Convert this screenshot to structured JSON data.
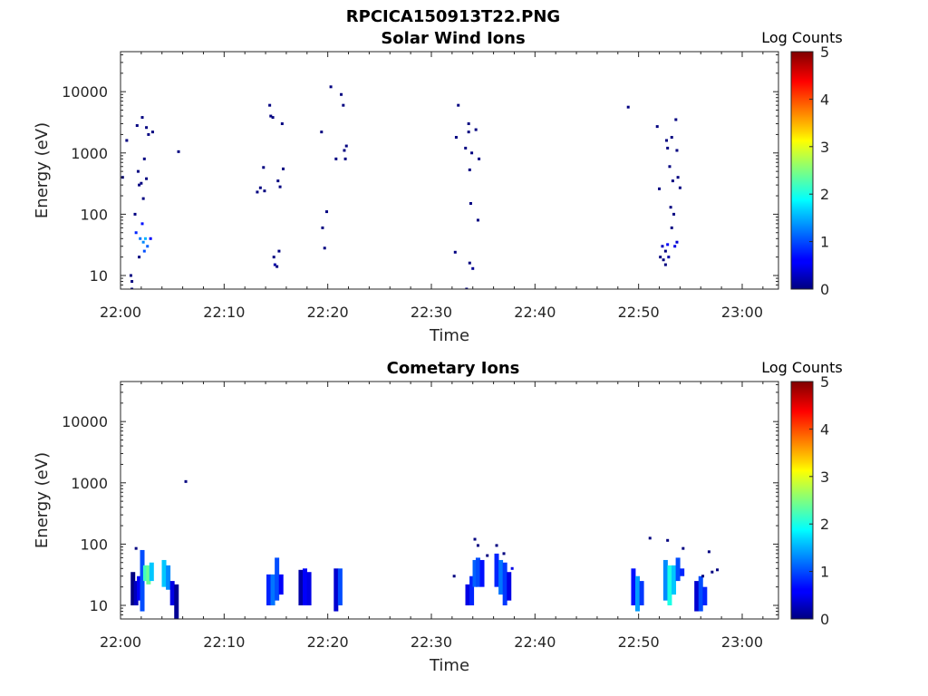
{
  "figure_title": "RPCICA150913T22.PNG",
  "chart_data": [
    {
      "type": "heatmap",
      "title": "Solar Wind Ions",
      "xlabel": "Time",
      "ylabel": "Energy (eV)",
      "x_ticks": [
        "22:00",
        "22:10",
        "22:20",
        "22:30",
        "22:40",
        "22:50",
        "23:00"
      ],
      "x_range_minutes": [
        0,
        63.5
      ],
      "y_scale": "log",
      "y_range": [
        6,
        45000
      ],
      "y_ticks": [
        "10",
        "100",
        "1000",
        "10000"
      ],
      "colorbar": {
        "label": "Log Counts",
        "range": [
          0,
          5
        ],
        "ticks": [
          "0",
          "1",
          "2",
          "3",
          "4",
          "5"
        ],
        "colormap": "jet"
      },
      "cells": [
        [
          -0.1,
          30,
          0
        ],
        [
          0.2,
          400,
          0
        ],
        [
          0.6,
          1600,
          0
        ],
        [
          1.0,
          10,
          0
        ],
        [
          1.1,
          8,
          0
        ],
        [
          1.1,
          6,
          0
        ],
        [
          1.4,
          100,
          0
        ],
        [
          1.5,
          50,
          0.8
        ],
        [
          1.6,
          2800,
          0
        ],
        [
          1.7,
          500,
          0
        ],
        [
          1.8,
          300,
          0
        ],
        [
          1.8,
          20,
          0
        ],
        [
          1.9,
          40,
          1.2
        ],
        [
          2.0,
          320,
          0
        ],
        [
          2.1,
          3800,
          0
        ],
        [
          2.1,
          70,
          0.7
        ],
        [
          2.2,
          35,
          1.3
        ],
        [
          2.2,
          180,
          0
        ],
        [
          2.3,
          800,
          0
        ],
        [
          2.3,
          25,
          1.0
        ],
        [
          2.4,
          40,
          1.5
        ],
        [
          2.5,
          2600,
          0
        ],
        [
          2.5,
          380,
          0
        ],
        [
          2.6,
          30,
          1.1
        ],
        [
          2.7,
          2000,
          0
        ],
        [
          2.9,
          40,
          0.6
        ],
        [
          3.1,
          2200,
          0
        ],
        [
          5.6,
          1050,
          0
        ],
        [
          13.2,
          230,
          0
        ],
        [
          13.5,
          270,
          0
        ],
        [
          13.8,
          580,
          0
        ],
        [
          13.9,
          240,
          0
        ],
        [
          14.4,
          6000,
          0
        ],
        [
          14.5,
          4000,
          0
        ],
        [
          14.7,
          3800,
          0
        ],
        [
          14.8,
          20,
          0
        ],
        [
          14.9,
          15,
          0.2
        ],
        [
          15.1,
          14,
          0
        ],
        [
          15.2,
          350,
          0
        ],
        [
          15.3,
          25,
          0
        ],
        [
          15.4,
          280,
          0
        ],
        [
          15.6,
          3000,
          0
        ],
        [
          15.7,
          550,
          0
        ],
        [
          19.4,
          2200,
          0
        ],
        [
          19.5,
          60,
          0
        ],
        [
          19.7,
          28,
          0
        ],
        [
          19.9,
          110,
          0
        ],
        [
          20.3,
          12000,
          0
        ],
        [
          20.8,
          800,
          0
        ],
        [
          21.3,
          9000,
          0
        ],
        [
          21.5,
          6000,
          0
        ],
        [
          21.6,
          1100,
          0
        ],
        [
          21.7,
          800,
          0
        ],
        [
          21.8,
          1300,
          0
        ],
        [
          32.3,
          24,
          0
        ],
        [
          32.4,
          1800,
          0
        ],
        [
          32.6,
          6000,
          0
        ],
        [
          33.3,
          1200,
          0
        ],
        [
          33.4,
          6,
          0
        ],
        [
          33.6,
          3000,
          0
        ],
        [
          33.6,
          2200,
          0
        ],
        [
          33.7,
          530,
          0
        ],
        [
          33.7,
          16,
          0
        ],
        [
          33.8,
          150,
          0
        ],
        [
          33.9,
          1000,
          0
        ],
        [
          34.0,
          13,
          0.1
        ],
        [
          34.3,
          2400,
          0
        ],
        [
          34.5,
          80,
          0
        ],
        [
          34.6,
          800,
          0
        ],
        [
          49.0,
          5600,
          0
        ],
        [
          51.8,
          2700,
          0
        ],
        [
          52.0,
          260,
          0
        ],
        [
          52.1,
          20,
          0
        ],
        [
          52.3,
          30,
          0.3
        ],
        [
          52.4,
          18,
          0
        ],
        [
          52.6,
          25,
          0
        ],
        [
          52.6,
          15,
          0
        ],
        [
          52.7,
          1600,
          0
        ],
        [
          52.8,
          1200,
          0
        ],
        [
          52.8,
          32,
          0.6
        ],
        [
          52.9,
          20,
          0.2
        ],
        [
          53.0,
          600,
          0
        ],
        [
          53.1,
          130,
          0
        ],
        [
          53.2,
          60,
          0
        ],
        [
          53.2,
          1800,
          0
        ],
        [
          53.3,
          350,
          0
        ],
        [
          53.4,
          100,
          0
        ],
        [
          53.5,
          30,
          0.5
        ],
        [
          53.6,
          3500,
          0
        ],
        [
          53.7,
          1100,
          0
        ],
        [
          53.7,
          35,
          0.4
        ],
        [
          53.8,
          400,
          0
        ],
        [
          54.0,
          270,
          0
        ]
      ]
    },
    {
      "type": "heatmap",
      "title": "Cometary Ions",
      "xlabel": "Time",
      "ylabel": "Energy (eV)",
      "x_ticks": [
        "22:00",
        "22:10",
        "22:20",
        "22:30",
        "22:40",
        "22:50",
        "23:00"
      ],
      "x_range_minutes": [
        0,
        63.5
      ],
      "y_scale": "log",
      "y_range": [
        6,
        45000
      ],
      "y_ticks": [
        "10",
        "100",
        "1000",
        "10000"
      ],
      "colorbar": {
        "label": "Log Counts",
        "range": [
          0,
          5
        ],
        "ticks": [
          "0",
          "1",
          "2",
          "3",
          "4",
          "5"
        ],
        "colormap": "jet"
      },
      "columns": [
        {
          "x": 1.2,
          "ymin": 10,
          "ymax": 35,
          "v": 0.0
        },
        {
          "x": 1.5,
          "ymin": 10,
          "ymax": 25,
          "v": 0.3
        },
        {
          "x": 1.8,
          "ymin": 12,
          "ymax": 30,
          "v": 0.6
        },
        {
          "x": 2.1,
          "ymin": 8,
          "ymax": 80,
          "v": 1.0
        },
        {
          "x": 2.4,
          "ymin": 25,
          "ymax": 45,
          "v": 2.2
        },
        {
          "x": 2.7,
          "ymin": 22,
          "ymax": 45,
          "v": 2.4
        },
        {
          "x": 3.0,
          "ymin": 25,
          "ymax": 50,
          "v": 1.6
        },
        {
          "x": 4.2,
          "ymin": 20,
          "ymax": 55,
          "v": 1.6
        },
        {
          "x": 4.6,
          "ymin": 18,
          "ymax": 45,
          "v": 1.3
        },
        {
          "x": 5.0,
          "ymin": 10,
          "ymax": 25,
          "v": 0.5
        },
        {
          "x": 5.4,
          "ymin": 6,
          "ymax": 22,
          "v": 0.1
        },
        {
          "x": 14.3,
          "ymin": 10,
          "ymax": 32,
          "v": 0.8
        },
        {
          "x": 14.7,
          "ymin": 10,
          "ymax": 32,
          "v": 1.2
        },
        {
          "x": 15.1,
          "ymin": 12,
          "ymax": 60,
          "v": 1.0
        },
        {
          "x": 15.5,
          "ymin": 15,
          "ymax": 32,
          "v": 0.6
        },
        {
          "x": 17.4,
          "ymin": 10,
          "ymax": 38,
          "v": 0.2
        },
        {
          "x": 17.8,
          "ymin": 10,
          "ymax": 40,
          "v": 0.6
        },
        {
          "x": 18.2,
          "ymin": 10,
          "ymax": 35,
          "v": 0.5
        },
        {
          "x": 20.8,
          "ymin": 8,
          "ymax": 40,
          "v": 0.4
        },
        {
          "x": 21.2,
          "ymin": 10,
          "ymax": 40,
          "v": 1.0
        },
        {
          "x": 33.5,
          "ymin": 10,
          "ymax": 22,
          "v": 0.5
        },
        {
          "x": 33.9,
          "ymin": 10,
          "ymax": 30,
          "v": 0.8
        },
        {
          "x": 34.2,
          "ymin": 20,
          "ymax": 55,
          "v": 1.1
        },
        {
          "x": 34.5,
          "ymin": 20,
          "ymax": 60,
          "v": 1.0
        },
        {
          "x": 34.9,
          "ymin": 20,
          "ymax": 55,
          "v": 0.7
        },
        {
          "x": 36.3,
          "ymin": 20,
          "ymax": 70,
          "v": 0.8
        },
        {
          "x": 36.7,
          "ymin": 15,
          "ymax": 55,
          "v": 1.2
        },
        {
          "x": 37.1,
          "ymin": 10,
          "ymax": 50,
          "v": 0.9
        },
        {
          "x": 37.5,
          "ymin": 12,
          "ymax": 35,
          "v": 0.5
        },
        {
          "x": 49.5,
          "ymin": 10,
          "ymax": 40,
          "v": 0.7
        },
        {
          "x": 49.9,
          "ymin": 8,
          "ymax": 30,
          "v": 1.4
        },
        {
          "x": 50.3,
          "ymin": 10,
          "ymax": 25,
          "v": 0.9
        },
        {
          "x": 52.6,
          "ymin": 12,
          "ymax": 55,
          "v": 1.3
        },
        {
          "x": 53.0,
          "ymin": 10,
          "ymax": 45,
          "v": 2.0
        },
        {
          "x": 53.4,
          "ymin": 15,
          "ymax": 45,
          "v": 1.6
        },
        {
          "x": 53.8,
          "ymin": 25,
          "ymax": 60,
          "v": 1.0
        },
        {
          "x": 54.2,
          "ymin": 30,
          "ymax": 40,
          "v": 0.8
        },
        {
          "x": 55.6,
          "ymin": 8,
          "ymax": 25,
          "v": 0.4
        },
        {
          "x": 56.0,
          "ymin": 8,
          "ymax": 30,
          "v": 1.0
        },
        {
          "x": 56.4,
          "ymin": 10,
          "ymax": 20,
          "v": 0.8
        }
      ],
      "cells": [
        [
          1.5,
          85,
          0
        ],
        [
          6.3,
          1050,
          0
        ],
        [
          32.2,
          30,
          0
        ],
        [
          34.2,
          120,
          0
        ],
        [
          34.5,
          95,
          0
        ],
        [
          35.4,
          65,
          0
        ],
        [
          36.3,
          95,
          0
        ],
        [
          37.0,
          70,
          0
        ],
        [
          37.8,
          40,
          0.5
        ],
        [
          51.1,
          125,
          0
        ],
        [
          52.8,
          115,
          0
        ],
        [
          54.3,
          85,
          0
        ],
        [
          56.2,
          30,
          0
        ],
        [
          56.8,
          75,
          0
        ],
        [
          57.1,
          35,
          0
        ],
        [
          57.6,
          38,
          0
        ]
      ]
    }
  ]
}
